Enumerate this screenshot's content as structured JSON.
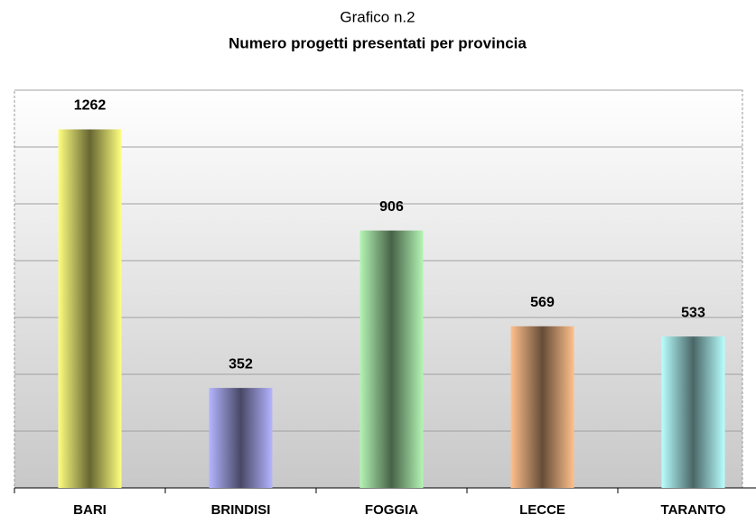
{
  "chart_data": {
    "type": "bar",
    "title": "Grafico n.2",
    "subtitle": "Numero progetti presentati per provincia",
    "categories": [
      "BARI",
      "BRINDISI",
      "FOGGIA",
      "LECCE",
      "TARANTO"
    ],
    "values": [
      1262,
      352,
      906,
      569,
      533
    ],
    "colors": [
      "#ffff80",
      "#b4b4ff",
      "#b4f5b4",
      "#ffc08c",
      "#b8ffff"
    ],
    "ylim": [
      0,
      1400
    ],
    "yticks": [
      0,
      200,
      400,
      600,
      800,
      1000,
      1200,
      1400
    ],
    "grid": true
  }
}
